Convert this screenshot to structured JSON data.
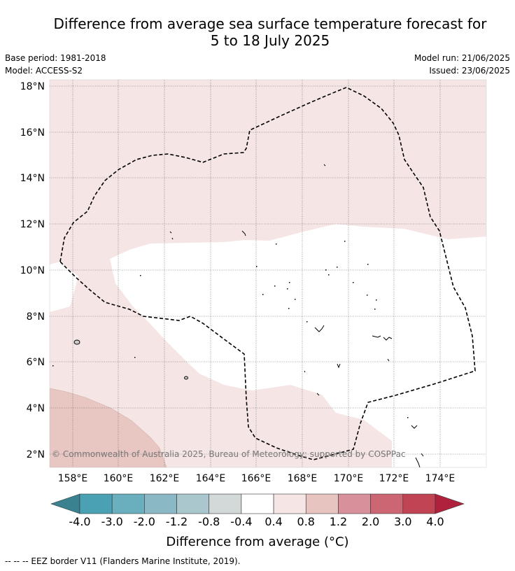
{
  "title_line1": "Difference from average sea surface temperature forecast for",
  "title_line2": "5 to 18 July 2025",
  "base_period": "Base period: 1981-2018",
  "model": "Model: ACCESS-S2",
  "model_run": "Model run: 21/06/2025",
  "issued": "Issued: 23/06/2025",
  "copyright": "© Commonwealth of Australia 2025, Bureau of Meteorology; supported by COSPPac",
  "lat_labels": [
    "18°N",
    "16°N",
    "14°N",
    "12°N",
    "10°N",
    "8°N",
    "6°N",
    "4°N",
    "2°N"
  ],
  "lon_labels": [
    "158°E",
    "160°E",
    "162°E",
    "164°E",
    "166°E",
    "168°E",
    "170°E",
    "172°E",
    "174°E"
  ],
  "colorbar": {
    "ticks": [
      "-4.0",
      "-3.0",
      "-2.0",
      "-1.2",
      "-0.8",
      "-0.4",
      "0.4",
      "0.8",
      "1.2",
      "2.0",
      "3.0",
      "4.0"
    ],
    "colors": [
      "#4aa1b4",
      "#6aafbe",
      "#8ab9c5",
      "#a9c7cc",
      "#d3d8d8",
      "#ffffff",
      "#f5e6e5",
      "#e8c4c1",
      "#d8909a",
      "#cc6673",
      "#c14454"
    ],
    "under_color": "#3b8290",
    "over_color": "#b0213e",
    "label": "Difference from average (°C)"
  },
  "legend_note": "-- -- -- EEZ border V11 (Flanders Marine Institute, 2019)."
}
